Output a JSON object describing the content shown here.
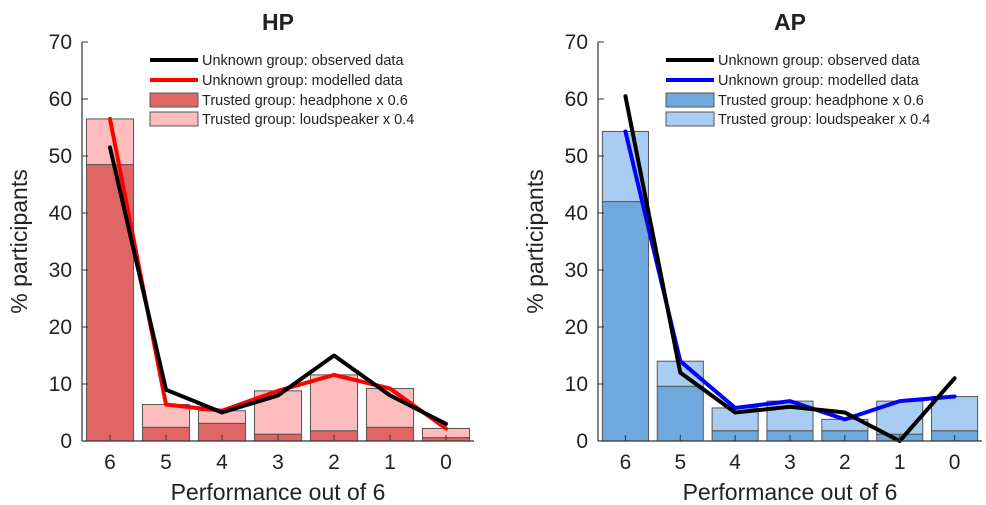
{
  "chart_data": [
    {
      "type": "bar",
      "title": "HP",
      "xlabel": "Performance out of 6",
      "ylabel": "% participants",
      "categories": [
        "6",
        "5",
        "4",
        "3",
        "2",
        "1",
        "0"
      ],
      "ylim": [
        0,
        70
      ],
      "yticks": [
        0,
        10,
        20,
        30,
        40,
        50,
        60,
        70
      ],
      "grid": false,
      "legend_position": "top-right",
      "colors": {
        "headphone": "#e06666",
        "loudspeaker": "#ffbcbc",
        "observed": "#000000",
        "modelled": "#ff0000"
      },
      "stacked_bars": [
        {
          "name": "Trusted group: headphone x 0.6",
          "values": [
            48.5,
            2.4,
            3.1,
            1.2,
            1.8,
            2.4,
            0.6
          ]
        },
        {
          "name": "Trusted group: loudspeaker x 0.4",
          "values": [
            8.0,
            4.0,
            2.2,
            7.6,
            9.8,
            6.8,
            1.6
          ]
        }
      ],
      "lines": [
        {
          "name": "Unknown group: observed data",
          "values": [
            51.5,
            9.0,
            5.0,
            8.0,
            15.0,
            8.0,
            3.0
          ]
        },
        {
          "name": "Unknown group: modelled data",
          "values": [
            56.5,
            6.4,
            5.3,
            8.8,
            11.6,
            9.2,
            2.2
          ]
        }
      ]
    },
    {
      "type": "bar",
      "title": "AP",
      "xlabel": "Performance out of 6",
      "ylabel": "% participants",
      "categories": [
        "6",
        "5",
        "4",
        "3",
        "2",
        "1",
        "0"
      ],
      "ylim": [
        0,
        70
      ],
      "yticks": [
        0,
        10,
        20,
        30,
        40,
        50,
        60,
        70
      ],
      "grid": false,
      "legend_position": "top-right",
      "colors": {
        "headphone": "#6fa8dc",
        "loudspeaker": "#a9cdf2",
        "observed": "#000000",
        "modelled": "#0000ff"
      },
      "stacked_bars": [
        {
          "name": "Trusted group: headphone x 0.6",
          "values": [
            42.0,
            9.6,
            1.8,
            1.8,
            1.8,
            1.2,
            1.8
          ]
        },
        {
          "name": "Trusted group: loudspeaker x 0.4",
          "values": [
            12.3,
            4.4,
            4.0,
            5.2,
            2.0,
            5.8,
            6.0
          ]
        }
      ],
      "lines": [
        {
          "name": "Unknown group: observed data",
          "values": [
            60.5,
            12.0,
            5.0,
            6.0,
            5.0,
            0.0,
            11.0
          ]
        },
        {
          "name": "Unknown group: modelled data",
          "values": [
            54.3,
            14.0,
            5.8,
            7.0,
            3.8,
            7.0,
            7.8
          ]
        }
      ]
    }
  ]
}
